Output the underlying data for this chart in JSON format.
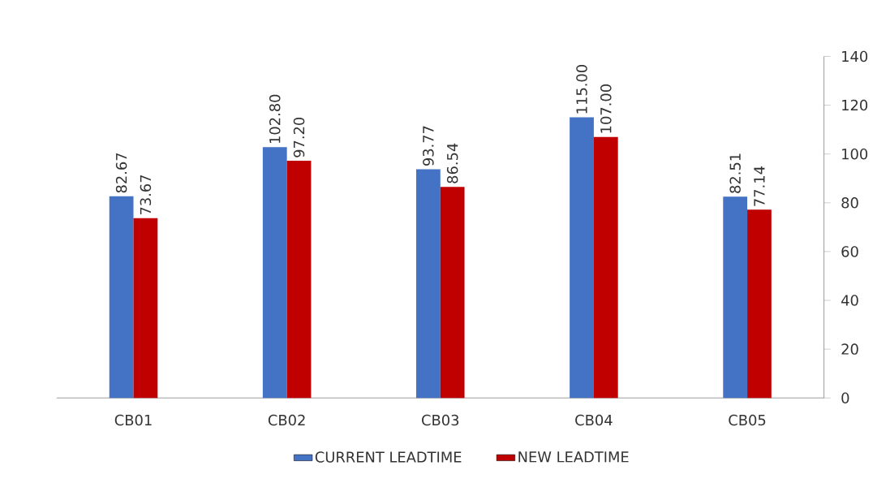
{
  "chart_data": {
    "type": "bar",
    "categories": [
      "CB01",
      "CB02",
      "CB03",
      "CB04",
      "CB05"
    ],
    "series": [
      {
        "name": "CURRENT LEADTIME",
        "color": "#4472c4",
        "values": [
          82.67,
          102.8,
          93.77,
          115,
          82.51
        ],
        "value_labels": [
          "82.67",
          "102.80",
          "93.77",
          "115.00",
          "82.51"
        ]
      },
      {
        "name": "NEW LEADTIME",
        "color": "#c00000",
        "values": [
          73.67,
          97.2,
          86.54,
          107,
          77.14
        ],
        "value_labels": [
          "73.67",
          "97.20",
          "86.54",
          "107.00",
          "77.14"
        ]
      }
    ],
    "ylim": [
      0,
      140
    ],
    "yticks": [
      0,
      20,
      40,
      60,
      80,
      100,
      120,
      140
    ],
    "legend": "bottom"
  }
}
